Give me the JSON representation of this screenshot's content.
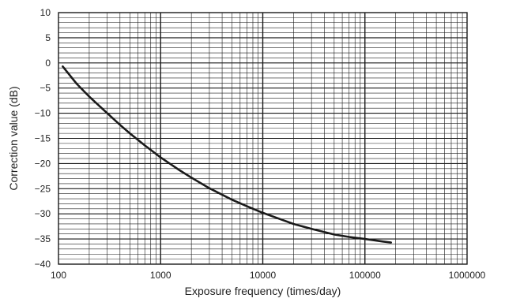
{
  "chart_data": {
    "type": "line",
    "title": "",
    "xlabel": "Exposure frequency (times/day)",
    "ylabel": "Correction value (dB)",
    "x_scale": "log",
    "xlim": [
      100,
      1000000
    ],
    "ylim": [
      -40,
      10
    ],
    "grid": true,
    "x_tick_labels": [
      "100",
      "1000",
      "10000",
      "100000",
      "1000000"
    ],
    "y_tick_labels": [
      "10",
      "5",
      "0",
      "−5",
      "−10",
      "−15",
      "−20",
      "−25",
      "−30",
      "−35",
      "−40"
    ],
    "series": [
      {
        "x": [
          110,
          150,
          200,
          300,
          400,
          500,
          700,
          1000,
          1500,
          2000,
          3000,
          5000,
          7000,
          10000,
          15000,
          20000,
          30000,
          50000,
          70000,
          100000,
          150000,
          180000
        ],
        "y": [
          -0.7,
          -4.1,
          -6.7,
          -10.0,
          -12.3,
          -14.0,
          -16.4,
          -18.8,
          -21.2,
          -22.8,
          -24.9,
          -27.2,
          -28.5,
          -29.8,
          -31.1,
          -32.0,
          -33.0,
          -34.1,
          -34.6,
          -35.0,
          -35.5,
          -35.7
        ],
        "color": "#1a1a1a"
      }
    ]
  }
}
